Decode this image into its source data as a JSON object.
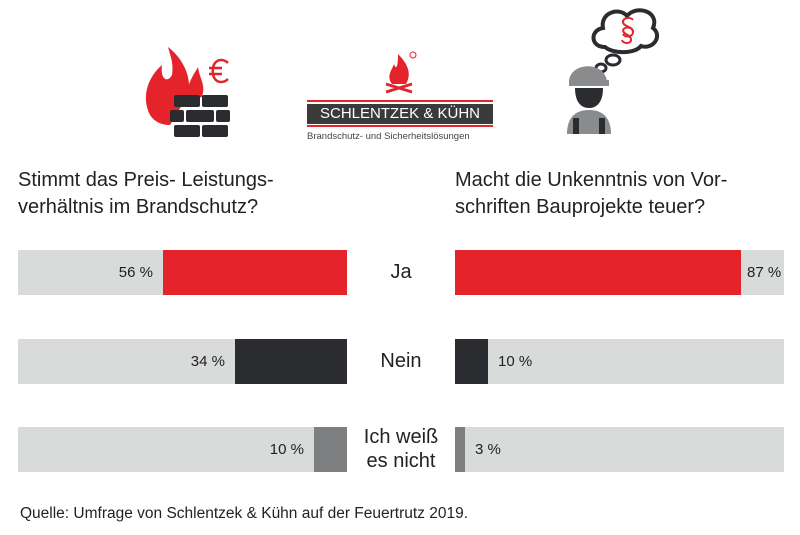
{
  "logo": {
    "name": "SCHLENTZEK & KÜHN",
    "tagline": "Brandschutz- und Sicherheitslösungen"
  },
  "icons": {
    "left": "fire-wall-euro-icon",
    "center": "campfire-logo-icon",
    "right": "worker-thinking-paragraph-icon"
  },
  "colors": {
    "ja": "#e4232b",
    "nein": "#2b2c30",
    "unknown": "#7d7f80",
    "track": "#d9dada"
  },
  "chart_data": [
    {
      "type": "bar",
      "title": "Stimmt das Preis- Leistungs-verhältnis im Brandschutz?",
      "title_lines": [
        "Stimmt das Preis- Leistungs-",
        "verhältnis im Brandschutz?"
      ],
      "categories": [
        "Ja",
        "Nein",
        "Ich weiß es nicht"
      ],
      "values": [
        56,
        34,
        10
      ],
      "labels": [
        "56 %",
        "34 %",
        "10 %"
      ],
      "direction": "right-to-left",
      "xlim": [
        0,
        100
      ]
    },
    {
      "type": "bar",
      "title": "Macht die Unkenntnis von Vorschriften Bauprojekte teuer?",
      "title_lines": [
        "Macht die Unkenntnis von Vor-",
        "schriften Bauprojekte teuer?"
      ],
      "categories": [
        "Ja",
        "Nein",
        "Ich weiß es nicht"
      ],
      "values": [
        87,
        10,
        3
      ],
      "labels": [
        "87 %",
        "10 %",
        "3 %"
      ],
      "direction": "left-to-right",
      "xlim": [
        0,
        100
      ]
    }
  ],
  "category_labels": [
    [
      "Ja"
    ],
    [
      "Nein"
    ],
    [
      "Ich weiß",
      "es nicht"
    ]
  ],
  "footer": "Quelle: Umfrage von Schlentzek & Kühn auf der Feuertrutz 2019."
}
